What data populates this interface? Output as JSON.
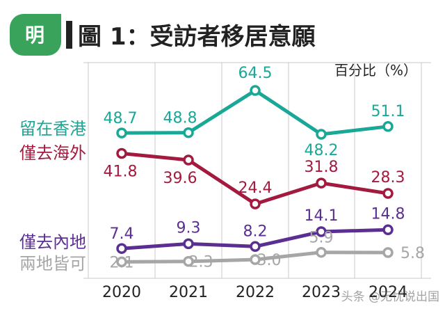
{
  "header": {
    "logo_text": "明",
    "title": "圖 1：受訪者移居意願",
    "unit_label": "百分比（%）"
  },
  "watermark": "头条 @无忧说出国",
  "colors": {
    "logo_bg": "#3aa35b",
    "grid": "#c8c8c8",
    "axis": "#333333",
    "text": "#222222"
  },
  "chart_data": {
    "type": "line",
    "title": "圖 1：受訪者移居意願",
    "ylabel": "百分比（%）",
    "xlabel": "",
    "categories": [
      "2020",
      "2021",
      "2022",
      "2023",
      "2024"
    ],
    "ylim": [
      0,
      70
    ],
    "series": [
      {
        "name": "留在香港",
        "color": "#1aa896",
        "values": [
          48.7,
          48.8,
          64.5,
          48.2,
          51.1
        ],
        "labels": [
          "48.7",
          "48.8",
          "64.5",
          "48.2",
          "51.1"
        ]
      },
      {
        "name": "僅去海外",
        "color": "#a31a3f",
        "values": [
          41.8,
          39.6,
          24.4,
          31.8,
          28.3
        ],
        "labels": [
          "41.8",
          "39.6",
          "24.4",
          "31.8",
          "28.3"
        ]
      },
      {
        "name": "僅去內地",
        "color": "#5b2f91",
        "values": [
          7.4,
          9.3,
          8.2,
          14.1,
          14.8
        ],
        "labels": [
          "7.4",
          "9.3",
          "8.2",
          "14.1",
          "14.8"
        ]
      },
      {
        "name": "兩地皆可",
        "color": "#a6a6a6",
        "values": [
          2.1,
          2.3,
          3.0,
          5.9,
          5.8
        ],
        "labels": [
          "2.1",
          "2.3",
          "3.0",
          "5.9",
          "5.8"
        ]
      }
    ]
  }
}
